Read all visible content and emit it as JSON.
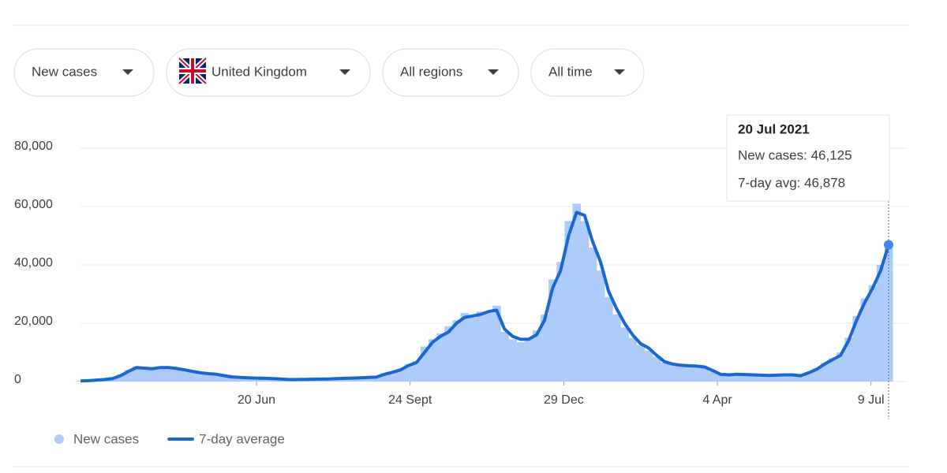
{
  "controls": [
    {
      "label": "New cases"
    },
    {
      "label": "United Kingdom"
    },
    {
      "label": "All regions"
    },
    {
      "label": "All time"
    }
  ],
  "chart_data": {
    "type": "combo",
    "x": [
      0,
      5,
      10,
      15,
      20,
      25,
      30,
      35,
      40,
      45,
      50,
      55,
      60,
      65,
      70,
      75,
      80,
      85,
      90,
      95,
      100,
      105,
      110,
      115,
      120,
      125,
      130,
      135,
      140,
      145,
      150,
      155,
      160,
      165,
      170,
      175,
      180,
      185,
      190,
      195,
      200,
      205,
      210,
      215,
      220,
      225,
      230,
      235,
      240,
      245,
      250,
      255,
      260,
      265,
      270,
      275,
      280,
      285,
      290,
      295,
      300,
      305,
      310,
      315,
      320,
      325,
      330,
      335,
      340,
      345,
      350,
      355,
      360,
      365,
      370,
      375,
      380,
      385,
      390,
      395,
      400,
      405,
      410,
      415,
      420,
      425,
      430,
      435,
      440,
      445,
      450,
      455,
      460,
      465,
      470,
      475,
      480,
      485,
      490,
      495,
      500,
      505
    ],
    "xlim": [
      0,
      505
    ],
    "xticks": [
      {
        "value": 110,
        "label": "20 Jun"
      },
      {
        "value": 206,
        "label": "24 Sept"
      },
      {
        "value": 302,
        "label": "29 Dec"
      },
      {
        "value": 398,
        "label": "4 Apr"
      },
      {
        "value": 494,
        "label": "9 Jul"
      }
    ],
    "ylim": [
      0,
      80000
    ],
    "yticks": [
      {
        "value": 0,
        "label": "0"
      },
      {
        "value": 20000,
        "label": "20,000"
      },
      {
        "value": 40000,
        "label": "40,000"
      },
      {
        "value": 60000,
        "label": "60,000"
      },
      {
        "value": 80000,
        "label": "80,000"
      }
    ],
    "grid": true,
    "legend": "bottom-left",
    "series": [
      {
        "name": "New cases",
        "type": "bar",
        "color": "#aecbfa",
        "values": [
          300,
          400,
          700,
          900,
          1500,
          2500,
          4000,
          5200,
          4500,
          4200,
          5000,
          4600,
          4300,
          3800,
          3300,
          2800,
          2600,
          2300,
          1900,
          1500,
          1300,
          1200,
          1100,
          1000,
          900,
          800,
          650,
          750,
          800,
          850,
          900,
          950,
          1050,
          1150,
          1250,
          1350,
          1450,
          1800,
          2900,
          3500,
          4400,
          6000,
          7000,
          12000,
          14500,
          16500,
          19000,
          21000,
          23500,
          22000,
          24000,
          23500,
          26000,
          17000,
          14500,
          13500,
          15000,
          17500,
          23000,
          35000,
          41000,
          55000,
          61000,
          55000,
          46000,
          38000,
          29000,
          23000,
          18500,
          15000,
          12500,
          10500,
          8500,
          6500,
          5800,
          5500,
          5200,
          5400,
          4800,
          3500,
          2400,
          2500,
          2600,
          2300,
          2400,
          2100,
          2000,
          2300,
          2200,
          2400,
          2100,
          3300,
          4500,
          6400,
          8000,
          10000,
          15000,
          22500,
          28500,
          33000,
          40000,
          46125
        ]
      },
      {
        "name": "7-day average",
        "type": "line",
        "color": "#1967d2",
        "values": [
          200,
          300,
          500,
          700,
          1000,
          2000,
          3500,
          4800,
          4600,
          4400,
          4800,
          4800,
          4500,
          4000,
          3500,
          3000,
          2700,
          2500,
          2000,
          1600,
          1400,
          1300,
          1200,
          1100,
          1000,
          900,
          700,
          700,
          750,
          800,
          850,
          900,
          1000,
          1100,
          1200,
          1300,
          1400,
          1500,
          2500,
          3200,
          4000,
          5500,
          6500,
          10000,
          13500,
          15500,
          17000,
          20000,
          22000,
          22500,
          23000,
          24000,
          24500,
          18000,
          15500,
          14500,
          14500,
          16000,
          21000,
          32000,
          38000,
          50000,
          58000,
          57000,
          48000,
          41000,
          31000,
          25000,
          20000,
          16000,
          13000,
          11500,
          9000,
          6800,
          6000,
          5600,
          5400,
          5300,
          5000,
          3800,
          2500,
          2300,
          2500,
          2400,
          2300,
          2200,
          2100,
          2200,
          2300,
          2300,
          2000,
          3000,
          4200,
          6000,
          7500,
          9000,
          14000,
          21000,
          27000,
          32000,
          38000,
          46878
        ]
      }
    ],
    "tooltip": {
      "title": "20 Jul 2021",
      "lines": [
        "New cases: 46,125",
        "7-day avg: 46,878"
      ]
    }
  }
}
